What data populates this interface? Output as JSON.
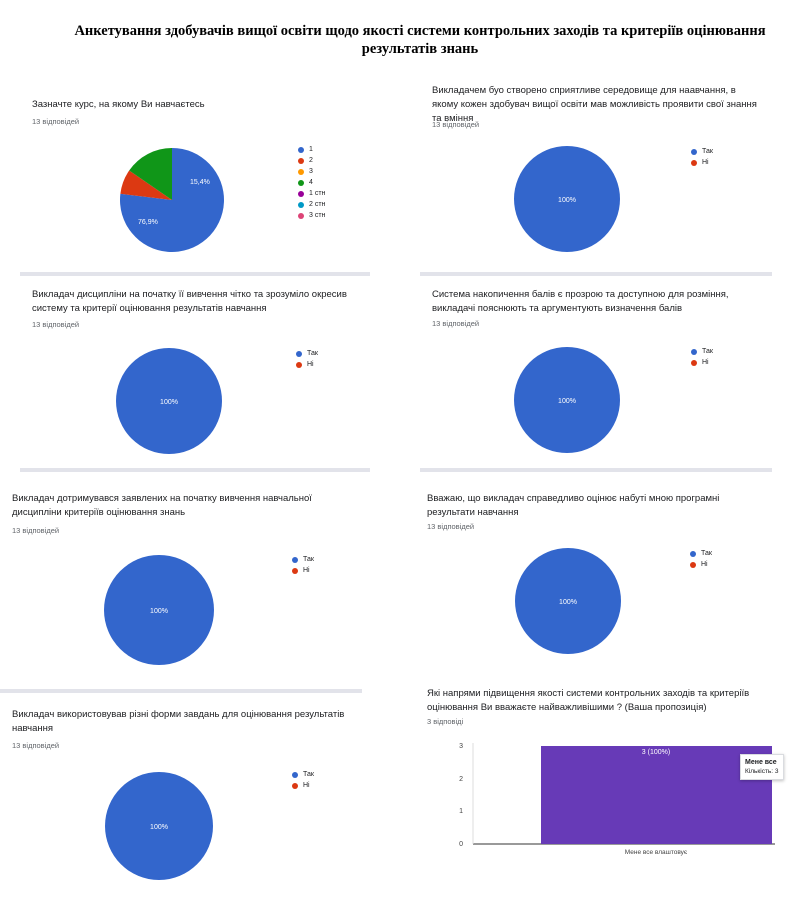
{
  "page_title": "Анкетування здобувачів вищої освіти щодо якості системи контрольних заходів та критеріїв оцінювання результатів знань",
  "colors": {
    "blue": "#3366cc",
    "red": "#dc3912",
    "orange": "#ff9900",
    "green": "#109618",
    "purple": "#990099",
    "teal": "#0099c6",
    "pink": "#dd4477",
    "bar": "#673ab7"
  },
  "questions": [
    {
      "title": "Зазначте курс, на якому Ви навчаєтесь",
      "responses": "13 відповідей",
      "legend": [
        "1",
        "2",
        "3",
        "4",
        "1 стн",
        "2 стн",
        "3 стн"
      ],
      "slice_labels": [
        "76,9%",
        "15,4%"
      ]
    },
    {
      "title": "Викладачем буо створено сприятливе середовище для наавчання, в якому кожен здобувач вищої освіти мав можливість проявити свої знання та вміння",
      "responses": "13 відповідей",
      "legend": [
        "Так",
        "Ні"
      ],
      "slice_labels": [
        "100%"
      ]
    },
    {
      "title": "Викладач дисципліни на початку її вивчення чітко та зрозуміло окресив систему та критерії оцінювання результатів навчання",
      "responses": "13 відповідей",
      "legend": [
        "Так",
        "Ні"
      ],
      "slice_labels": [
        "100%"
      ]
    },
    {
      "title": "Система накопичення балів є прозрою та доступною для розміння, викладачі пояснюють та аргументують визначення балів",
      "responses": "13 відповідей",
      "legend": [
        "Так",
        "Ні"
      ],
      "slice_labels": [
        "100%"
      ]
    },
    {
      "title": "Викладач дотримувався заявлених на початку вивчення навчальної дисципліни критеріїв оцінювання знань",
      "responses": "13 відповідей",
      "legend": [
        "Так",
        "Ні"
      ],
      "slice_labels": [
        "100%"
      ]
    },
    {
      "title": "Вважаю, що викладач справедливо оцінює набуті мною програмні результати навчання",
      "responses": "13 відповідей",
      "legend": [
        "Так",
        "Ні"
      ],
      "slice_labels": [
        "100%"
      ]
    },
    {
      "title": "Викладач використовував різні форми завдань для оцінювання результатів навчання",
      "responses": "13 відповідей",
      "legend": [
        "Так",
        "Ні"
      ],
      "slice_labels": [
        "100%"
      ]
    },
    {
      "title": "Які напрями підвищення якості системи контрольних заходів та критеріїв оцінювання Ви вважаєте найважливішими ? (Ваша пропозиція)",
      "responses": "3 відповіді",
      "bar_label": "3 (100%)",
      "tooltip_title": "Мене все",
      "tooltip_body": "Кількість: 3"
    }
  ],
  "chart_data": [
    {
      "type": "pie",
      "title": "Зазначте курс, на якому Ви навчаєтесь",
      "categories": [
        "1",
        "2",
        "3",
        "4",
        "1 стн",
        "2 стн",
        "3 стн"
      ],
      "values": [
        76.9,
        7.7,
        0,
        15.4,
        0,
        0,
        0
      ]
    },
    {
      "type": "pie",
      "title": "Викладачем буо створено сприятливе середовище для наавчання, в якому кожен здобувач вищої освіти мав можливість проявити свої знання та вміння",
      "categories": [
        "Так",
        "Ні"
      ],
      "values": [
        100,
        0
      ]
    },
    {
      "type": "pie",
      "title": "Викладач дисципліни на початку її вивчення чітко та зрозуміло окресив систему та критерії оцінювання результатів навчання",
      "categories": [
        "Так",
        "Ні"
      ],
      "values": [
        100,
        0
      ]
    },
    {
      "type": "pie",
      "title": "Система накопичення балів є прозрою та доступною для розміння, викладачі пояснюють та аргументують визначення балів",
      "categories": [
        "Так",
        "Ні"
      ],
      "values": [
        100,
        0
      ]
    },
    {
      "type": "pie",
      "title": "Викладач дотримувався заявлених на початку вивчення навчальної дисципліни критеріїв оцінювання знань",
      "categories": [
        "Так",
        "Ні"
      ],
      "values": [
        100,
        0
      ]
    },
    {
      "type": "pie",
      "title": "Вважаю, що викладач справедливо оцінює набуті мною програмні результати навчання",
      "categories": [
        "Так",
        "Ні"
      ],
      "values": [
        100,
        0
      ]
    },
    {
      "type": "pie",
      "title": "Викладач використовував різні форми завдань для оцінювання результатів навчання",
      "categories": [
        "Так",
        "Ні"
      ],
      "values": [
        100,
        0
      ]
    },
    {
      "type": "bar",
      "title": "Які напрями підвищення якості системи контрольних заходів та критеріїв оцінювання Ви вважаєте найважливішими ? (Ваша пропозиція)",
      "categories": [
        "Мене все влаштовує"
      ],
      "values": [
        3
      ],
      "ylim": [
        0,
        3
      ],
      "yticks": [
        0,
        1,
        2,
        3
      ]
    }
  ]
}
